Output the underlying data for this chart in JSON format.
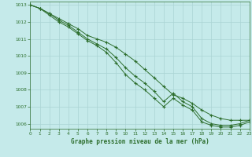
{
  "title": "Graphe pression niveau de la mer (hPa)",
  "bg_color": "#c5eaea",
  "grid_color": "#aad4d4",
  "line_color": "#2d6e2d",
  "marker_color": "#2d6e2d",
  "xlim": [
    0,
    23
  ],
  "ylim": [
    1005.7,
    1013.2
  ],
  "yticks": [
    1006,
    1007,
    1008,
    1009,
    1010,
    1011,
    1012,
    1013
  ],
  "xticks": [
    0,
    1,
    2,
    3,
    4,
    5,
    6,
    7,
    8,
    9,
    10,
    11,
    12,
    13,
    14,
    15,
    16,
    17,
    18,
    19,
    20,
    21,
    22,
    23
  ],
  "series1": [
    1013.0,
    1012.8,
    1012.5,
    1012.2,
    1011.9,
    1011.6,
    1011.2,
    1011.0,
    1010.8,
    1010.5,
    1010.1,
    1009.7,
    1009.2,
    1008.7,
    1008.2,
    1007.7,
    1007.5,
    1007.2,
    1006.8,
    1006.5,
    1006.3,
    1006.2,
    1006.2,
    1006.2
  ],
  "series2": [
    1013.0,
    1012.8,
    1012.5,
    1012.1,
    1011.8,
    1011.4,
    1011.0,
    1010.7,
    1010.4,
    1009.9,
    1009.3,
    1008.8,
    1008.4,
    1007.9,
    1007.3,
    1007.8,
    1007.3,
    1007.0,
    1006.3,
    1006.0,
    1005.9,
    1005.9,
    1006.0,
    1006.2
  ],
  "series3": [
    1013.0,
    1012.8,
    1012.4,
    1012.0,
    1011.7,
    1011.3,
    1010.9,
    1010.6,
    1010.2,
    1009.6,
    1008.9,
    1008.4,
    1008.0,
    1007.5,
    1007.0,
    1007.5,
    1007.1,
    1006.8,
    1006.1,
    1005.9,
    1005.8,
    1005.8,
    1005.9,
    1006.1
  ]
}
